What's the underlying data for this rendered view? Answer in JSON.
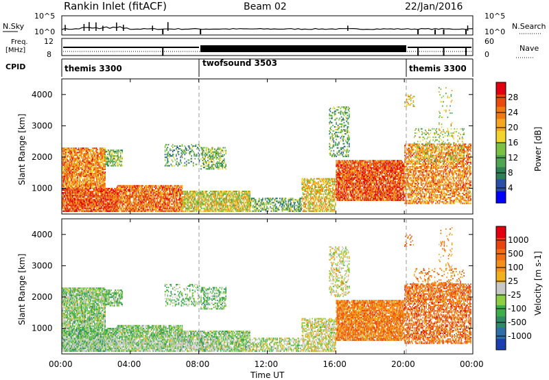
{
  "header": {
    "station": "Rankin Inlet (fitACF)",
    "beam": "Beam 02",
    "date": "22/Jan/2016"
  },
  "top_panels": {
    "nsky_label": "N.Sky",
    "nsearch_label": "N.Search",
    "nsky_ticks": [
      "10^5",
      "10^0"
    ],
    "nsearch_ticks": [
      "10^5",
      "10^0"
    ],
    "freq_label_1": "Freq.",
    "freq_label_2": "[MHz]",
    "freq_ticks": [
      "12",
      "8"
    ],
    "nave_label": "Nave",
    "nave_ticks": [
      "60",
      "0"
    ],
    "cpid_label": "CPID",
    "cpid_segments": [
      {
        "name": "themis 3300",
        "start_h": 0,
        "end_h": 8
      },
      {
        "name": "twofsound 3503",
        "start_h": 8,
        "end_h": 20
      },
      {
        "name": "themis 3300",
        "start_h": 20,
        "end_h": 24
      }
    ]
  },
  "time_axis": {
    "label": "Time UT",
    "ticks": [
      "00:00",
      "04:00",
      "08:00",
      "12:00",
      "16:00",
      "20:00",
      "00:00"
    ],
    "range_h": [
      0,
      24
    ]
  },
  "chart_data": [
    {
      "type": "heatmap",
      "title": "Power",
      "ylabel": "Slant Range [km]",
      "yticks": [
        "1000",
        "2000",
        "3000",
        "4000"
      ],
      "ylim": [
        180,
        4500
      ],
      "colorbar_label": "Power [dB]",
      "colorbar_ticks": [
        "4",
        "8",
        "12",
        "16",
        "20",
        "24",
        "28"
      ],
      "colorbar_colors": [
        "#0000ff",
        "#2a4fa8",
        "#2f7f55",
        "#4fa552",
        "#7cc242",
        "#f2d42a",
        "#f5a623",
        "#ef7a12",
        "#e84a10",
        "#e0000f"
      ]
    },
    {
      "type": "heatmap",
      "title": "Velocity",
      "ylabel": "Slant Range [km]",
      "yticks": [
        "1000",
        "2000",
        "3000",
        "4000"
      ],
      "ylim": [
        180,
        4500
      ],
      "colorbar_label": "Velocity [m s-1]",
      "colorbar_ticks": [
        "1000",
        "500",
        "100",
        "25",
        "-25",
        "-100",
        "-500",
        "-1000"
      ],
      "colorbar_colors": [
        "#1b3fb0",
        "#2d6fa6",
        "#2f8a66",
        "#3fae4a",
        "#8ccf45",
        "#c8c8c8",
        "#f0b020",
        "#f5901c",
        "#ef6f12",
        "#e84410",
        "#e0000f"
      ]
    }
  ]
}
